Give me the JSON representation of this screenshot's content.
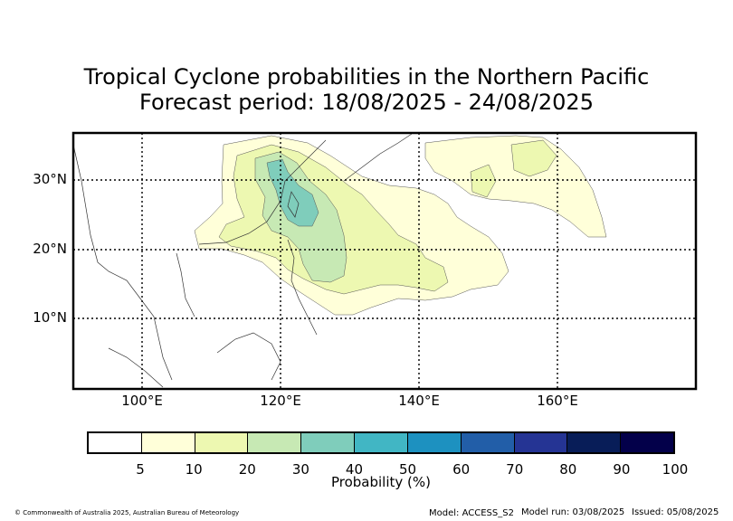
{
  "title_line1": "Tropical Cyclone probabilities in the Northern Pacific",
  "title_line2": "Forecast period: 18/08/2025 - 24/08/2025",
  "lat_labels": [
    "30°N",
    "20°N",
    "10°N"
  ],
  "lon_labels": [
    "100°E",
    "120°E",
    "140°E",
    "160°E"
  ],
  "map_extent": {
    "lon_min": 90,
    "lon_max": 180,
    "lat_min": 0,
    "lat_max": 37
  },
  "gridlines": {
    "lons": [
      100,
      120,
      140,
      160
    ],
    "lats": [
      10,
      20,
      30
    ],
    "style": "dotted"
  },
  "probability_contours": {
    "levels_percent": [
      5,
      10,
      20,
      30
    ],
    "max_region": "30-40% south-east China coast / Taiwan Strait"
  },
  "colorbar": {
    "ticks": [
      "5",
      "10",
      "20",
      "30",
      "40",
      "50",
      "60",
      "70",
      "80",
      "90",
      "100"
    ],
    "colors": [
      "#ffffff",
      "#ffffd9",
      "#edf8b1",
      "#c7e9b4",
      "#7fcdbb",
      "#41b6c4",
      "#1d91c0",
      "#225ea8",
      "#253494",
      "#081d58",
      "#03004a"
    ],
    "label": "Probability (%)"
  },
  "footer": {
    "copyright": "© Commonwealth of Australia 2025, Australian Bureau of Meteorology",
    "model": "Model: ACCESS_S2",
    "model_run": "Model run: 03/08/2025",
    "issued": "Issued: 05/08/2025"
  }
}
